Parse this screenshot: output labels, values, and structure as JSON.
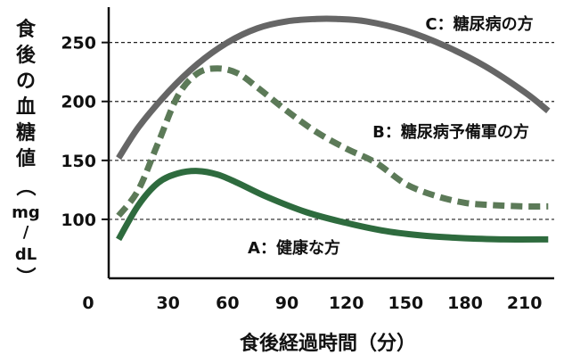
{
  "chart_data": {
    "type": "line",
    "xlabel": "食後経過時間（分）",
    "ylabel_chars": [
      "食",
      "後",
      "の",
      "血",
      "糖",
      "値",
      "（",
      "mg",
      "/",
      "dL",
      "）"
    ],
    "xlim": [
      0,
      225
    ],
    "ylim": [
      50,
      280
    ],
    "x_ticks": [
      0,
      30,
      60,
      90,
      120,
      150,
      180,
      210
    ],
    "y_ticks": [
      100,
      150,
      200,
      250
    ],
    "grid": "horizontal-dashed",
    "series": [
      {
        "name": "C：糖尿病の方",
        "color": "#666666",
        "style": "solid",
        "x": [
          5,
          15,
          30,
          45,
          60,
          75,
          90,
          105,
          115,
          130,
          150,
          170,
          190,
          210,
          222
        ],
        "y": [
          152,
          178,
          208,
          232,
          250,
          262,
          268,
          270,
          270,
          268,
          260,
          247,
          230,
          208,
          192
        ]
      },
      {
        "name": "B：糖尿病予備軍の方",
        "color": "#5c7a58",
        "style": "dashed",
        "x": [
          5,
          15,
          25,
          35,
          45,
          55,
          65,
          75,
          90,
          105,
          120,
          135,
          150,
          165,
          180,
          195,
          210,
          222
        ],
        "y": [
          103,
          125,
          165,
          205,
          224,
          228,
          224,
          212,
          192,
          174,
          160,
          148,
          130,
          120,
          114,
          112,
          111,
          111
        ]
      },
      {
        "name": "A：健康な方",
        "color": "#2e6b3e",
        "style": "solid",
        "x": [
          5,
          15,
          25,
          35,
          45,
          55,
          65,
          80,
          100,
          120,
          140,
          160,
          180,
          200,
          222
        ],
        "y": [
          83,
          112,
          131,
          139,
          141,
          138,
          131,
          119,
          106,
          97,
          90,
          86,
          84,
          83,
          83
        ]
      }
    ]
  }
}
